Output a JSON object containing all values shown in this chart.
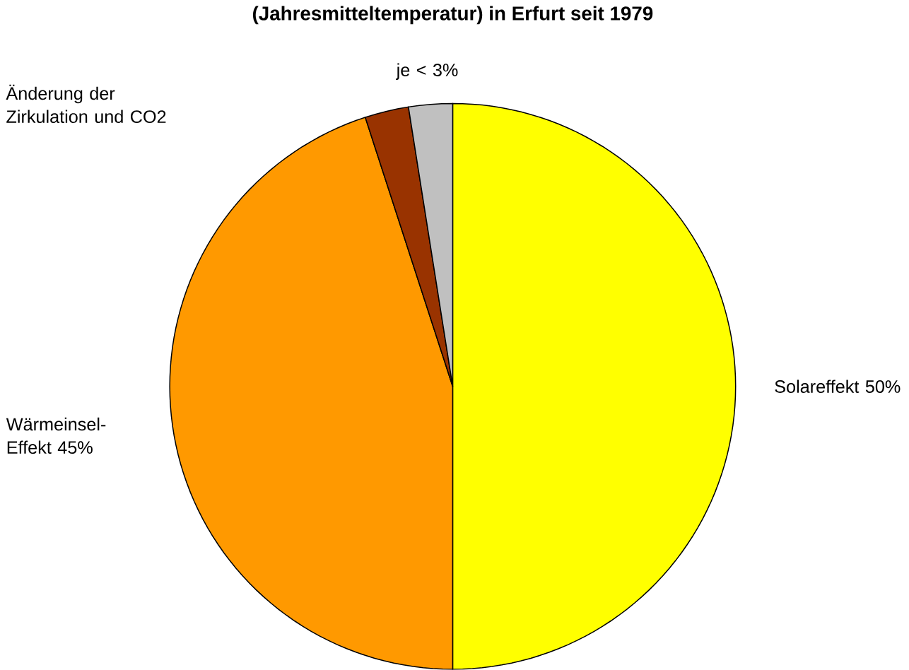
{
  "chart_data": {
    "type": "pie",
    "title": "(Jahresmitteltemperatur) in Erfurt seit 1979",
    "categories": [
      "Solareffekt",
      "Wärmeinsel-Effekt",
      null,
      null
    ],
    "values": [
      50,
      45,
      2.5,
      2.5
    ],
    "value_labels": [
      "50%",
      "45%",
      null,
      null
    ],
    "colors": [
      "#ffff00",
      "#ff9900",
      "#993300",
      "#c0c0c0"
    ],
    "annotations": [
      "Änderung der Zirkulation und CO2",
      "je < 3%"
    ]
  }
}
